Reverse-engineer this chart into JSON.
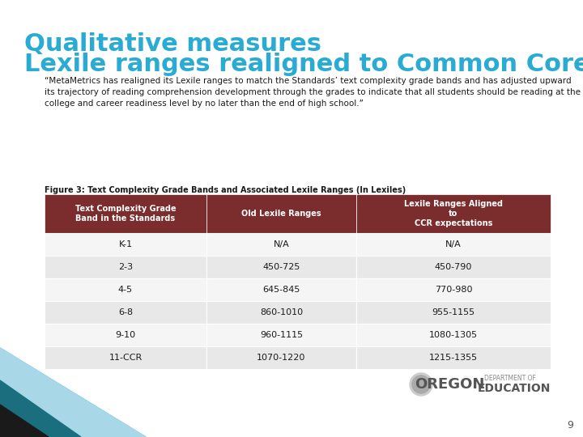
{
  "title_line1": "Qualitative measures",
  "title_line2": "Lexile ranges realigned to Common Core",
  "title_color": "#29ABD4",
  "body_text": "“MetaMetrics has realigned its Lexile ranges to match the Standards’ text complexity grade bands and has adjusted upward its trajectory of reading comprehension development through the grades to indicate that all students should be reading at the college and career readiness level by no later than the end of high school.”",
  "figure_caption": "Figure 3: Text Complexity Grade Bands and Associated Lexile Ranges (In Lexiles)",
  "header_bg_color": "#7B2D2D",
  "header_text_color": "#FFFFFF",
  "row_alt_color": "#E8E8E8",
  "row_plain_color": "#F5F5F5",
  "col_headers": [
    "Text Complexity Grade\nBand in the Standards",
    "Old Lexile Ranges",
    "Lexile Ranges Aligned\nto\nCCR expectations"
  ],
  "rows": [
    [
      "K-1",
      "N/A",
      "N/A"
    ],
    [
      "2-3",
      "450-725",
      "450-790"
    ],
    [
      "4-5",
      "645-845",
      "770-980"
    ],
    [
      "6-8",
      "860-1010",
      "955-1155"
    ],
    [
      "9-10",
      "960-1115",
      "1080-1305"
    ],
    [
      "11-CCR",
      "1070-1220",
      "1215-1355"
    ]
  ],
  "background_color": "#FFFFFF",
  "slide_bg": "#FFFFFF",
  "page_number": "9",
  "teal_accent": "#29ABD4",
  "dark_teal": "#1A6E7E",
  "near_black": "#1A1A1A"
}
